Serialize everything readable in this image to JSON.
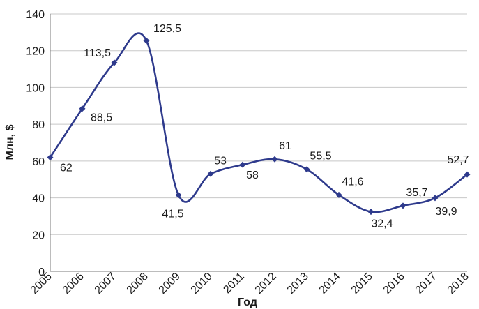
{
  "chart_data": {
    "type": "line",
    "x": [
      "2005",
      "2006",
      "2007",
      "2008",
      "2009",
      "2010",
      "2011",
      "2012",
      "2013",
      "2014",
      "2015",
      "2016",
      "2017",
      "2018"
    ],
    "series": [
      {
        "values": [
          62,
          88.5,
          113.5,
          125.5,
          41.5,
          53,
          58,
          61,
          55.5,
          41.6,
          32.4,
          35.7,
          39.9,
          52.7
        ]
      }
    ],
    "data_labels": [
      "62",
      "88,5",
      "113,5",
      "125,5",
      "41,5",
      "53",
      "58",
      "61",
      "55,5",
      "41,6",
      "32,4",
      "35,7",
      "39,9",
      "52,7"
    ],
    "xlabel": "Год",
    "ylabel": "Млн, $",
    "ylim": [
      0,
      140
    ],
    "yticks": [
      0,
      20,
      40,
      60,
      80,
      100,
      120,
      140
    ],
    "grid": true,
    "line_style": "smooth",
    "color": "#2e3a8c"
  }
}
